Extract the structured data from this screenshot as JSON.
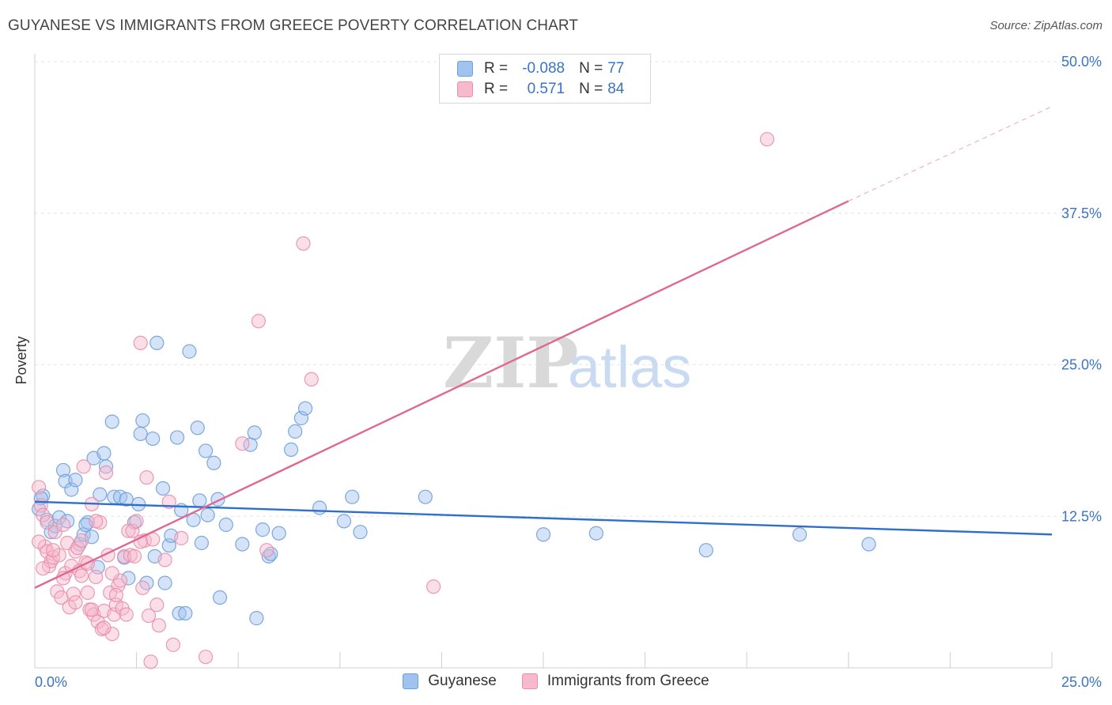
{
  "title": "GUYANESE VS IMMIGRANTS FROM GREECE POVERTY CORRELATION CHART",
  "source": "Source: ZipAtlas.com",
  "watermark": {
    "zip": "ZIP",
    "atlas": "atlas"
  },
  "legend": {
    "rows": [
      {
        "r_label": "R =",
        "r_value": "-0.088",
        "n_label": "N =",
        "n_value": "77",
        "color": "#9fc2ee",
        "border": "#6f9fdc"
      },
      {
        "r_label": "R =",
        "r_value": "0.571",
        "n_label": "N =",
        "n_value": "84",
        "color": "#f7b9cc",
        "border": "#e98fab"
      }
    ]
  },
  "chart_data": {
    "type": "scatter",
    "title": "GUYANESE VS IMMIGRANTS FROM GREECE POVERTY CORRELATION CHART",
    "xlabel": "",
    "ylabel": "Poverty",
    "xlim": [
      0,
      25
    ],
    "ylim": [
      0,
      50
    ],
    "x_tick_labels": [
      "0.0%",
      "25.0%"
    ],
    "y_ticks": [
      12.5,
      25.0,
      37.5,
      50.0
    ],
    "y_tick_labels": [
      "12.5%",
      "25.0%",
      "37.5%",
      "50.0%"
    ],
    "grid": true,
    "legend_position": "top-center",
    "series": [
      {
        "name": "Guyanese",
        "color": "#6f9fdc",
        "fill": "#9fc2ee",
        "line_color": "#2e6fcb",
        "trend": {
          "x": [
            0,
            25
          ],
          "y": [
            13.7,
            11.0
          ]
        },
        "points": [
          [
            0.1,
            13.1
          ],
          [
            0.2,
            14.2
          ],
          [
            0.3,
            12.2
          ],
          [
            0.4,
            11.2
          ],
          [
            0.5,
            11.7
          ],
          [
            0.6,
            12.4
          ],
          [
            0.7,
            16.3
          ],
          [
            0.75,
            15.4
          ],
          [
            0.8,
            12.1
          ],
          [
            0.9,
            14.7
          ],
          [
            1.0,
            15.5
          ],
          [
            1.1,
            10.2
          ],
          [
            1.2,
            11.0
          ],
          [
            1.3,
            12.0
          ],
          [
            1.4,
            10.8
          ],
          [
            1.45,
            17.3
          ],
          [
            1.55,
            8.3
          ],
          [
            1.6,
            14.3
          ],
          [
            1.7,
            17.7
          ],
          [
            1.75,
            16.6
          ],
          [
            1.9,
            20.3
          ],
          [
            1.95,
            14.1
          ],
          [
            2.1,
            14.1
          ],
          [
            2.2,
            9.1
          ],
          [
            2.3,
            7.4
          ],
          [
            2.45,
            12.0
          ],
          [
            2.55,
            13.5
          ],
          [
            2.6,
            19.3
          ],
          [
            2.65,
            20.4
          ],
          [
            2.75,
            7.0
          ],
          [
            2.9,
            18.9
          ],
          [
            2.95,
            9.2
          ],
          [
            3.0,
            26.8
          ],
          [
            3.15,
            14.8
          ],
          [
            3.2,
            7.0
          ],
          [
            3.3,
            10.1
          ],
          [
            3.35,
            10.9
          ],
          [
            3.5,
            19.0
          ],
          [
            3.55,
            4.5
          ],
          [
            3.7,
            4.5
          ],
          [
            3.8,
            26.1
          ],
          [
            3.9,
            12.2
          ],
          [
            4.0,
            19.8
          ],
          [
            4.05,
            13.8
          ],
          [
            4.1,
            10.3
          ],
          [
            4.2,
            17.9
          ],
          [
            4.25,
            12.6
          ],
          [
            4.4,
            16.9
          ],
          [
            4.5,
            13.9
          ],
          [
            4.55,
            5.8
          ],
          [
            4.7,
            11.8
          ],
          [
            5.1,
            10.2
          ],
          [
            5.3,
            18.4
          ],
          [
            5.4,
            19.4
          ],
          [
            5.45,
            4.1
          ],
          [
            5.6,
            11.4
          ],
          [
            5.75,
            9.2
          ],
          [
            5.8,
            9.4
          ],
          [
            6.0,
            11.1
          ],
          [
            6.3,
            18.0
          ],
          [
            6.4,
            19.5
          ],
          [
            6.55,
            20.6
          ],
          [
            6.65,
            21.4
          ],
          [
            7.0,
            13.2
          ],
          [
            7.6,
            12.1
          ],
          [
            7.8,
            14.1
          ],
          [
            8.0,
            11.2
          ],
          [
            9.6,
            14.1
          ],
          [
            12.5,
            11.0
          ],
          [
            13.8,
            11.1
          ],
          [
            16.5,
            9.7
          ],
          [
            18.8,
            11.0
          ],
          [
            20.5,
            10.2
          ],
          [
            0.15,
            14.0
          ],
          [
            1.25,
            11.8
          ],
          [
            2.25,
            13.9
          ],
          [
            3.6,
            13.0
          ]
        ]
      },
      {
        "name": "Immigrants from Greece",
        "color": "#e98fab",
        "fill": "#f7b9cc",
        "line_color": "#e06792",
        "trend": {
          "x": [
            0,
            20
          ],
          "y": [
            6.6,
            38.5
          ]
        },
        "trend_dashed": {
          "x": [
            20,
            25
          ],
          "y": [
            38.5,
            46.3
          ]
        },
        "points": [
          [
            0.1,
            14.9
          ],
          [
            0.15,
            13.4
          ],
          [
            0.2,
            12.6
          ],
          [
            0.25,
            10.0
          ],
          [
            0.3,
            9.6
          ],
          [
            0.35,
            8.4
          ],
          [
            0.4,
            8.8
          ],
          [
            0.45,
            9.1
          ],
          [
            0.5,
            11.2
          ],
          [
            0.55,
            6.3
          ],
          [
            0.6,
            9.3
          ],
          [
            0.65,
            5.8
          ],
          [
            0.7,
            11.8
          ],
          [
            0.75,
            7.8
          ],
          [
            0.8,
            10.3
          ],
          [
            0.85,
            5.0
          ],
          [
            0.9,
            8.4
          ],
          [
            0.95,
            6.1
          ],
          [
            1.0,
            9.6
          ],
          [
            1.05,
            9.9
          ],
          [
            1.1,
            8.0
          ],
          [
            1.15,
            10.5
          ],
          [
            1.2,
            16.6
          ],
          [
            1.25,
            8.7
          ],
          [
            1.3,
            6.2
          ],
          [
            1.35,
            4.8
          ],
          [
            1.4,
            13.5
          ],
          [
            1.45,
            4.4
          ],
          [
            1.5,
            7.5
          ],
          [
            1.55,
            3.8
          ],
          [
            1.6,
            12.0
          ],
          [
            1.65,
            3.2
          ],
          [
            1.7,
            4.7
          ],
          [
            1.75,
            16.1
          ],
          [
            1.8,
            9.3
          ],
          [
            1.85,
            6.2
          ],
          [
            1.9,
            2.8
          ],
          [
            1.95,
            4.4
          ],
          [
            2.0,
            5.2
          ],
          [
            2.05,
            6.8
          ],
          [
            2.1,
            7.2
          ],
          [
            2.15,
            4.9
          ],
          [
            2.2,
            9.2
          ],
          [
            2.3,
            11.3
          ],
          [
            2.35,
            9.3
          ],
          [
            2.4,
            11.3
          ],
          [
            2.5,
            12.1
          ],
          [
            2.6,
            26.8
          ],
          [
            2.65,
            6.6
          ],
          [
            2.7,
            10.5
          ],
          [
            2.75,
            15.7
          ],
          [
            2.8,
            4.3
          ],
          [
            2.85,
            0.5
          ],
          [
            2.9,
            10.6
          ],
          [
            3.0,
            5.2
          ],
          [
            3.05,
            3.5
          ],
          [
            3.2,
            8.9
          ],
          [
            3.3,
            13.7
          ],
          [
            3.4,
            1.9
          ],
          [
            3.6,
            10.7
          ],
          [
            4.2,
            0.9
          ],
          [
            5.1,
            18.5
          ],
          [
            5.5,
            28.6
          ],
          [
            5.7,
            9.7
          ],
          [
            6.6,
            35.0
          ],
          [
            6.8,
            23.8
          ],
          [
            9.8,
            6.7
          ],
          [
            18.0,
            43.6
          ],
          [
            0.3,
            12.0
          ],
          [
            0.45,
            9.7
          ],
          [
            0.7,
            7.4
          ],
          [
            1.0,
            5.4
          ],
          [
            1.15,
            7.6
          ],
          [
            1.3,
            8.6
          ],
          [
            1.5,
            12.1
          ],
          [
            1.7,
            3.3
          ],
          [
            1.9,
            7.8
          ],
          [
            2.0,
            6.0
          ],
          [
            2.25,
            4.4
          ],
          [
            2.45,
            9.2
          ],
          [
            0.1,
            10.4
          ],
          [
            0.2,
            8.2
          ],
          [
            1.4,
            4.8
          ],
          [
            2.6,
            10.4
          ]
        ]
      }
    ]
  },
  "bottom_legend": {
    "items": [
      {
        "label": "Guyanese",
        "color": "#9fc2ee",
        "border": "#6f9fdc"
      },
      {
        "label": "Immigrants from Greece",
        "color": "#f7b9cc",
        "border": "#e98fab"
      }
    ]
  }
}
